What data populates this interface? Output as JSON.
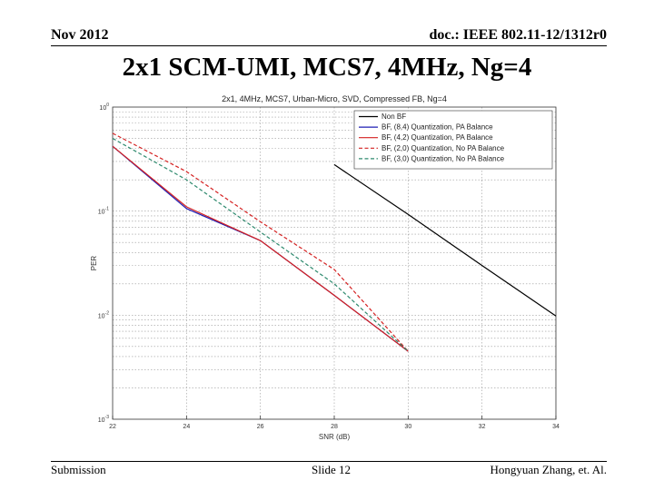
{
  "header": {
    "date": "Nov 2012",
    "doc_id": "doc.: IEEE 802.11-12/1312r0"
  },
  "slide": {
    "title": "2x1 SCM-UMI, MCS7, 4MHz, Ng=4"
  },
  "footer": {
    "left": "Submission",
    "center": "Slide 12",
    "right": "Hongyuan Zhang, et. Al."
  },
  "chart_data": {
    "type": "line",
    "title": "2x1, 4MHz, MCS7, Urban-Micro, SVD, Compressed FB, Ng=4",
    "xlabel": "SNR (dB)",
    "ylabel": "PER",
    "xlim": [
      22,
      34
    ],
    "ylim": [
      0.001,
      1
    ],
    "y_scale": "log",
    "x_ticks": [
      22,
      24,
      26,
      28,
      30,
      32,
      34
    ],
    "y_tick_values": [
      1,
      0.1,
      0.01,
      0.001
    ],
    "y_tick_labels": [
      "10^0",
      "10^-1",
      "10^-2",
      "10^-3"
    ],
    "grid": true,
    "legend_position": "top-right",
    "series": [
      {
        "name": "Non BF",
        "color": "#000000",
        "dash": "solid",
        "x": [
          28,
          30,
          32,
          34
        ],
        "y": [
          0.28,
          0.093,
          0.03,
          0.0098
        ]
      },
      {
        "name": "BF, (8,4) Quantization, PA Balance",
        "color": "#1f1fb4",
        "dash": "solid",
        "x": [
          22,
          24,
          26,
          28,
          30
        ],
        "y": [
          0.42,
          0.106,
          0.052,
          0.0155,
          0.0045
        ]
      },
      {
        "name": "BF, (4,2) Quantization, PA Balance",
        "color": "#d42020",
        "dash": "solid",
        "x": [
          22,
          24,
          26,
          28,
          30
        ],
        "y": [
          0.42,
          0.11,
          0.052,
          0.0155,
          0.0045
        ]
      },
      {
        "name": "BF, (2,0) Quantization, No PA Balance",
        "color": "#d42020",
        "dash": "dashed",
        "x": [
          22,
          24,
          26,
          28,
          30
        ],
        "y": [
          0.56,
          0.24,
          0.079,
          0.0275,
          0.0045
        ]
      },
      {
        "name": "BF, (3,0) Quantization, No PA Balance",
        "color": "#2e8a6e",
        "dash": "dashed",
        "x": [
          22,
          24,
          26,
          28,
          30
        ],
        "y": [
          0.5,
          0.2,
          0.063,
          0.02,
          0.0045
        ]
      }
    ]
  }
}
